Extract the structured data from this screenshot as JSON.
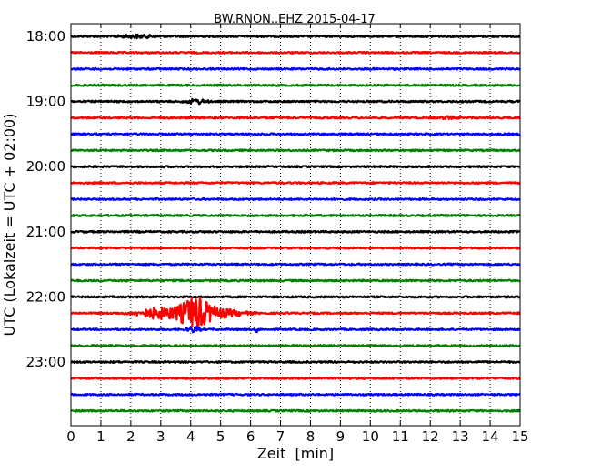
{
  "chart_data": {
    "type": "line",
    "title": "BW.RNON..EHZ 2015-04-17",
    "xlabel": "Zeit  [min]",
    "ylabel": "UTC (Lokalzeit = UTC + 02:00)",
    "xlim": [
      0,
      15
    ],
    "x_ticks": [
      "0",
      "1",
      "2",
      "3",
      "4",
      "5",
      "6",
      "7",
      "8",
      "9",
      "10",
      "11",
      "12",
      "13",
      "14",
      "15"
    ],
    "y_tick_labels": [
      "18:00",
      "19:00",
      "20:00",
      "21:00",
      "22:00",
      "23:00"
    ],
    "grid": "vertical-dotted",
    "trace_interval_min": 15,
    "trace_colors": [
      "#000000",
      "#ff0000",
      "#0000ff",
      "#008000"
    ],
    "series": [
      {
        "start": "18:00",
        "color": "#000000",
        "events": [
          {
            "t": 2.2,
            "amp": 1.5,
            "dur": 1.2
          }
        ]
      },
      {
        "start": "18:15",
        "color": "#ff0000",
        "events": []
      },
      {
        "start": "18:30",
        "color": "#0000ff",
        "events": []
      },
      {
        "start": "18:45",
        "color": "#008000",
        "events": []
      },
      {
        "start": "19:00",
        "color": "#000000",
        "events": [
          {
            "t": 4.2,
            "amp": 2.5,
            "dur": 0.6
          }
        ]
      },
      {
        "start": "19:15",
        "color": "#ff0000",
        "events": [
          {
            "t": 12.6,
            "amp": 1.2,
            "dur": 0.5
          }
        ]
      },
      {
        "start": "19:30",
        "color": "#0000ff",
        "events": []
      },
      {
        "start": "19:45",
        "color": "#008000",
        "events": []
      },
      {
        "start": "20:00",
        "color": "#000000",
        "events": []
      },
      {
        "start": "20:15",
        "color": "#ff0000",
        "events": []
      },
      {
        "start": "20:30",
        "color": "#0000ff",
        "events": []
      },
      {
        "start": "20:45",
        "color": "#008000",
        "events": []
      },
      {
        "start": "21:00",
        "color": "#000000",
        "events": []
      },
      {
        "start": "21:15",
        "color": "#ff0000",
        "events": []
      },
      {
        "start": "21:30",
        "color": "#0000ff",
        "events": []
      },
      {
        "start": "21:45",
        "color": "#008000",
        "events": []
      },
      {
        "start": "22:00",
        "color": "#000000",
        "events": []
      },
      {
        "start": "22:15",
        "color": "#ff0000",
        "events": [
          {
            "t": 3.0,
            "amp": 6,
            "dur": 1.5
          },
          {
            "t": 4.15,
            "amp": 16,
            "dur": 1.0
          },
          {
            "t": 5.0,
            "amp": 4,
            "dur": 1.5
          }
        ]
      },
      {
        "start": "22:30",
        "color": "#0000ff",
        "events": [
          {
            "t": 4.1,
            "amp": 3,
            "dur": 0.4
          },
          {
            "t": 6.2,
            "amp": 4,
            "dur": 0.08
          }
        ]
      },
      {
        "start": "22:45",
        "color": "#008000",
        "events": []
      },
      {
        "start": "23:00",
        "color": "#000000",
        "events": []
      },
      {
        "start": "23:15",
        "color": "#ff0000",
        "events": []
      },
      {
        "start": "23:30",
        "color": "#0000ff",
        "events": []
      },
      {
        "start": "23:45",
        "color": "#008000",
        "events": []
      }
    ]
  }
}
